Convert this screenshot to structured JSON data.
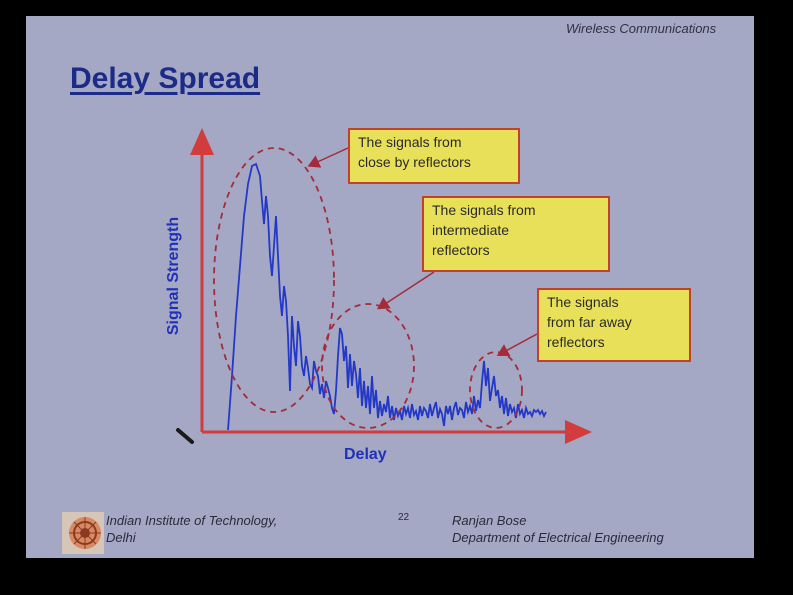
{
  "slide": {
    "header": "Wireless Communications",
    "title": "Delay Spread",
    "page_number": "22",
    "footer_left": [
      "Indian Institute of Technology,",
      "Delhi"
    ],
    "footer_right": [
      "Ranjan Bose",
      "Department of Electrical Engineering"
    ]
  },
  "chart_data": {
    "type": "line",
    "xlabel": "Delay",
    "ylabel": "Signal Strength",
    "annotations": [
      {
        "lines": [
          "The signals from",
          "close by reflectors"
        ]
      },
      {
        "lines": [
          "The signals from",
          "intermediate",
          "reflectors"
        ]
      },
      {
        "lines": [
          "The signals",
          "from far away",
          "reflectors"
        ]
      }
    ]
  },
  "colors": {
    "slide_bg": "#a4a8c4",
    "title": "#1c2a88",
    "axis": "#d23c3c",
    "signal": "#2438c8",
    "callout_bg": "#e9e05a",
    "callout_border": "#c2412a",
    "ellipse": "#a52a3a"
  }
}
